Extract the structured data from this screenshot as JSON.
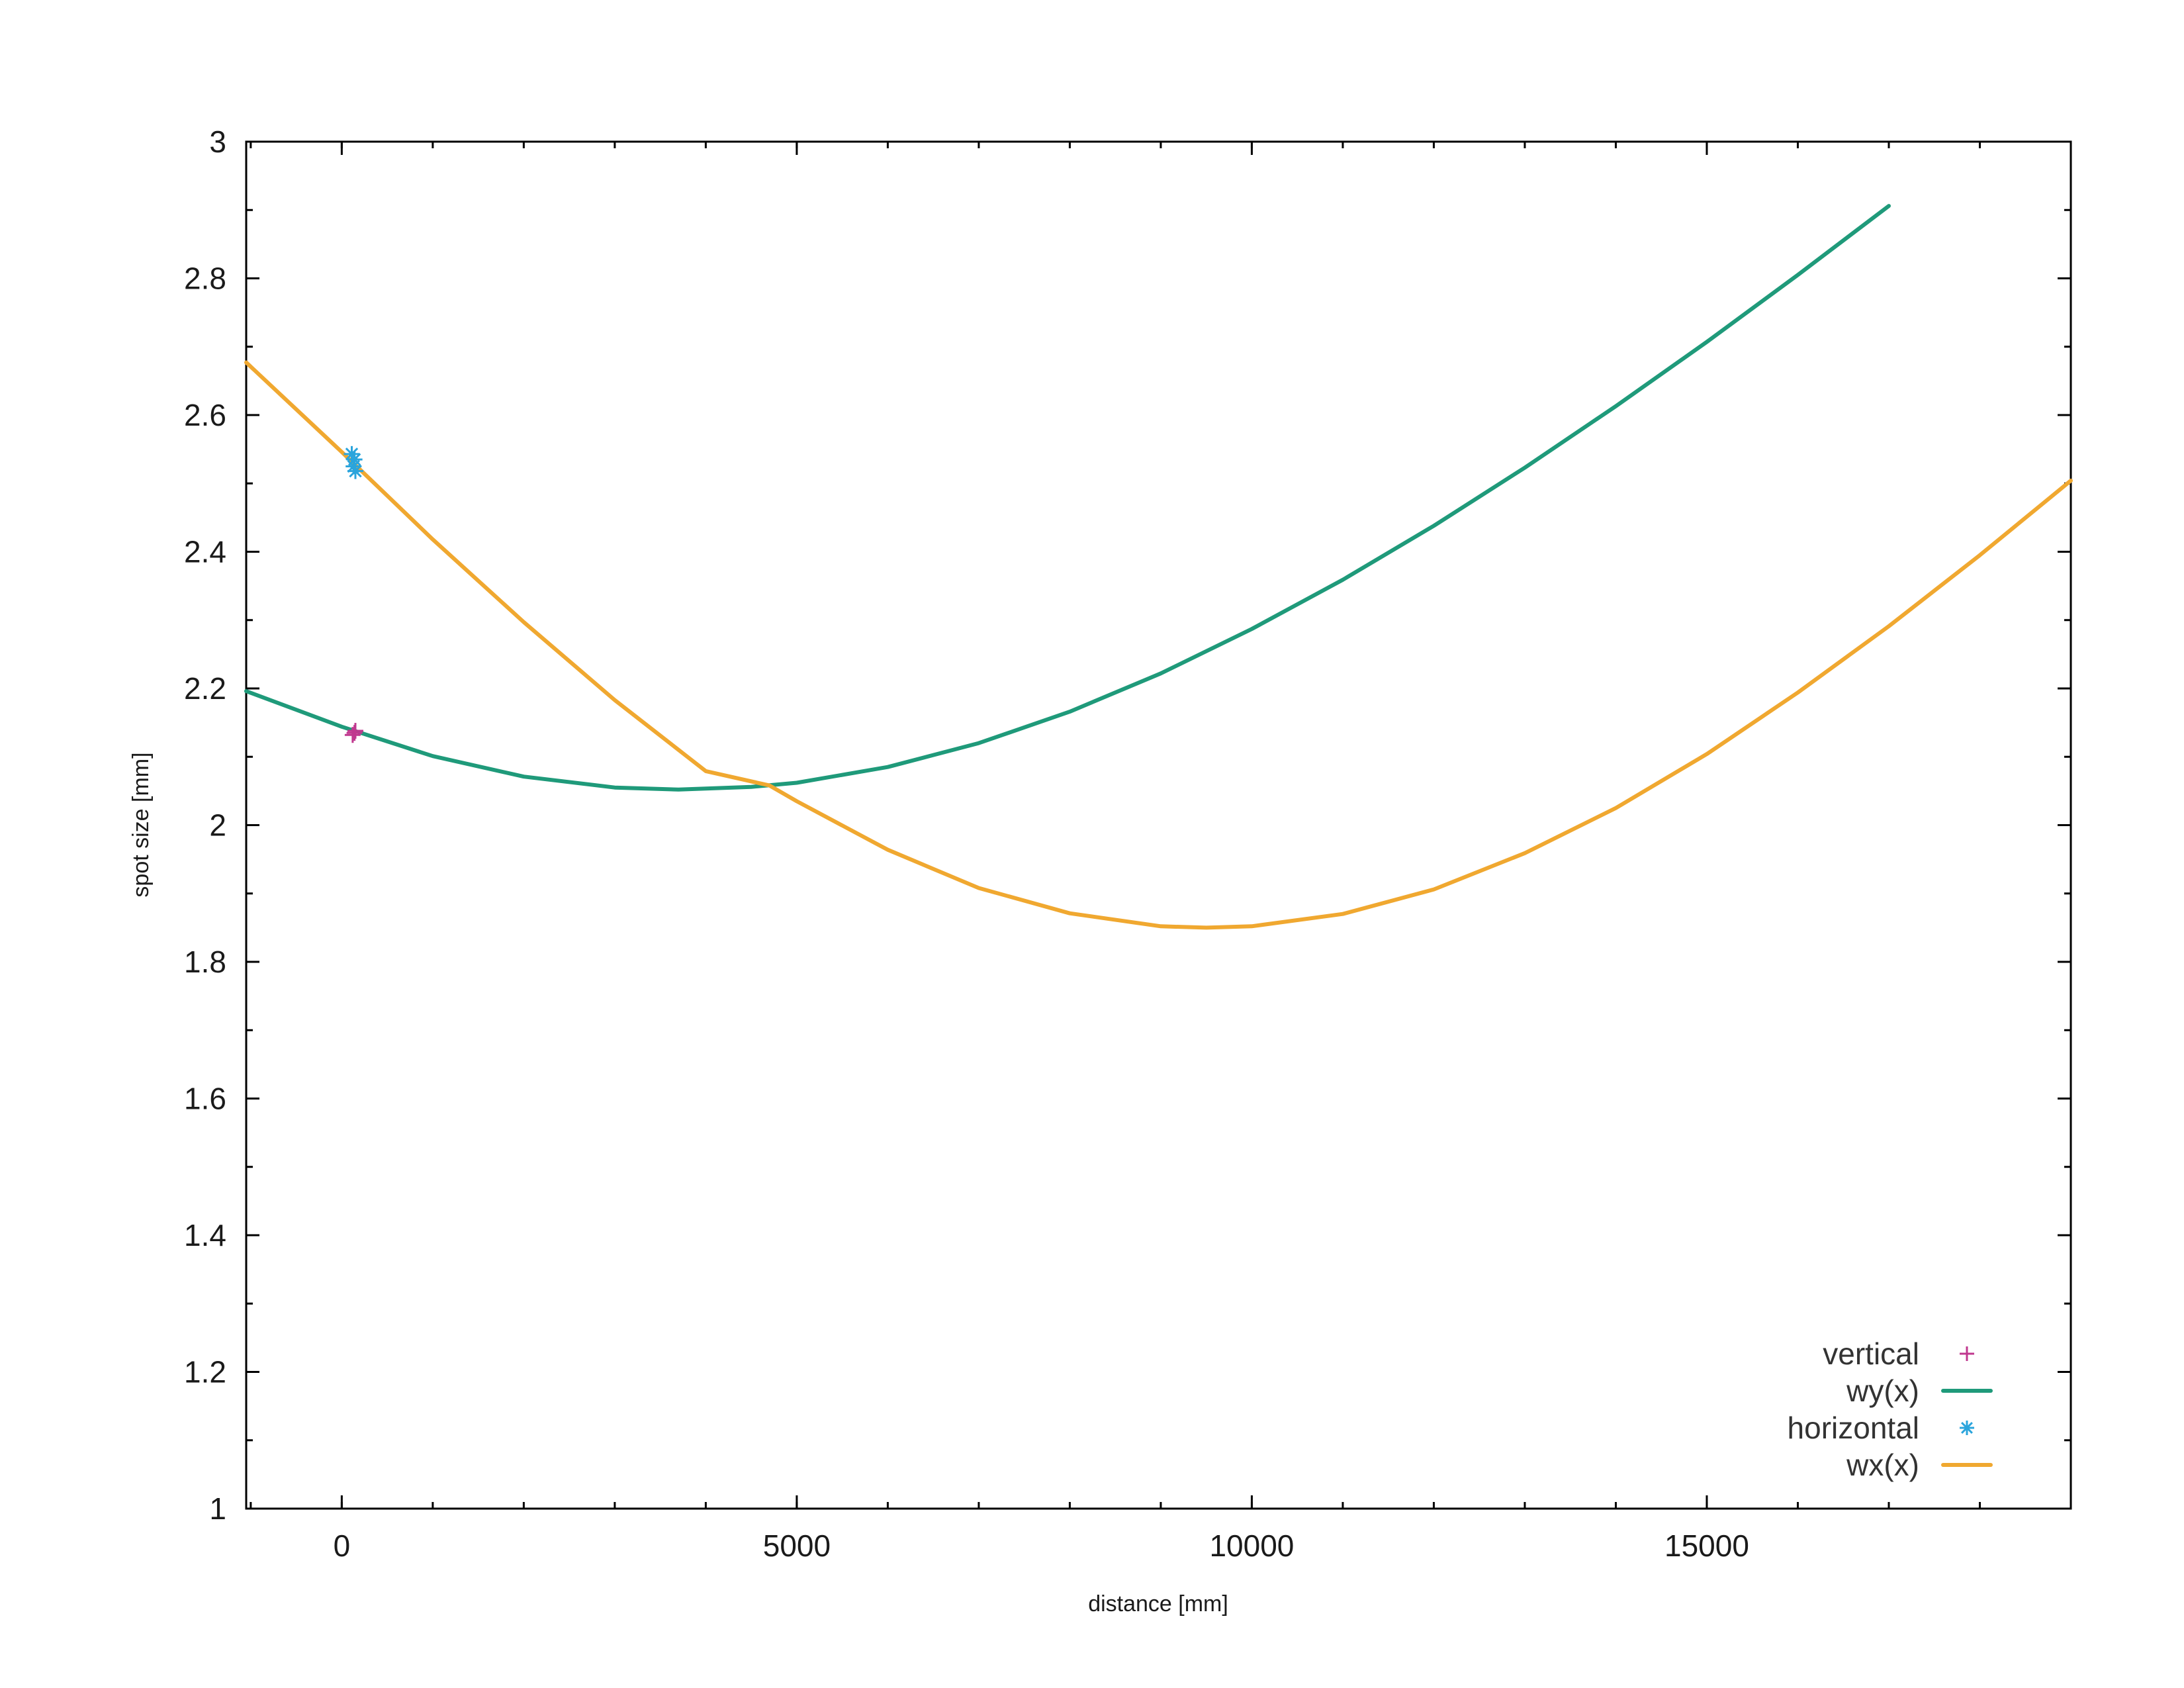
{
  "chart_data": {
    "type": "line",
    "title": "",
    "xlabel": "distance [mm]",
    "ylabel": "spot size [mm]",
    "xlim": [
      -1050,
      19000
    ],
    "ylim": [
      1,
      3
    ],
    "x_ticks": [
      0,
      5000,
      10000,
      15000
    ],
    "x_tick_labels": [
      "0",
      "5000",
      "10000",
      "15000"
    ],
    "x_minor_step": 1000,
    "y_ticks": [
      1,
      1.2,
      1.4,
      1.6,
      1.8,
      2,
      2.2,
      2.4,
      2.6,
      2.8,
      3
    ],
    "y_tick_labels": [
      "1",
      "1.2",
      "1.4",
      "1.6",
      "1.8",
      "2",
      "2.2",
      "2.4",
      "2.6",
      "2.8",
      "3"
    ],
    "y_minor_step": 0.1,
    "grid": false,
    "legend_position": "bottom-right",
    "series": [
      {
        "name": "vertical",
        "kind": "points",
        "marker": "plus",
        "color": "#c0388f",
        "x": [
          120,
          140,
          150
        ],
        "y": [
          2.132,
          2.135,
          2.138
        ]
      },
      {
        "name": "wy(x)",
        "kind": "line",
        "color": "#1f9a7a",
        "x": [
          -1050,
          0,
          1000,
          2000,
          3000,
          3700,
          4500,
          5000,
          6000,
          7000,
          8000,
          9000,
          10000,
          11000,
          12000,
          13000,
          14000,
          15000,
          16000,
          17000
        ],
        "y": [
          2.196,
          2.144,
          2.101,
          2.071,
          2.055,
          2.052,
          2.056,
          2.062,
          2.085,
          2.12,
          2.166,
          2.222,
          2.287,
          2.359,
          2.438,
          2.523,
          2.613,
          2.707,
          2.805,
          2.906
        ]
      },
      {
        "name": "horizontal",
        "kind": "points",
        "marker": "asterisk",
        "color": "#2aa4dc",
        "x": [
          110,
          130,
          140,
          150
        ],
        "y": [
          2.543,
          2.525,
          2.535,
          2.518
        ]
      },
      {
        "name": "wx(x)",
        "kind": "line",
        "color": "#f0a830",
        "x": [
          -1050,
          0,
          1000,
          2000,
          3000,
          4000,
          4700,
          5000,
          6000,
          7000,
          8000,
          9000,
          9500,
          10000,
          11000,
          12000,
          13000,
          14000,
          15000,
          16000,
          17000,
          18000,
          19000
        ],
        "y": [
          2.677,
          2.546,
          2.418,
          2.297,
          2.183,
          2.079,
          2.058,
          2.035,
          1.964,
          1.908,
          1.871,
          1.852,
          1.85,
          1.852,
          1.87,
          1.906,
          1.959,
          2.025,
          2.104,
          2.194,
          2.291,
          2.395,
          2.504
        ]
      }
    ]
  }
}
